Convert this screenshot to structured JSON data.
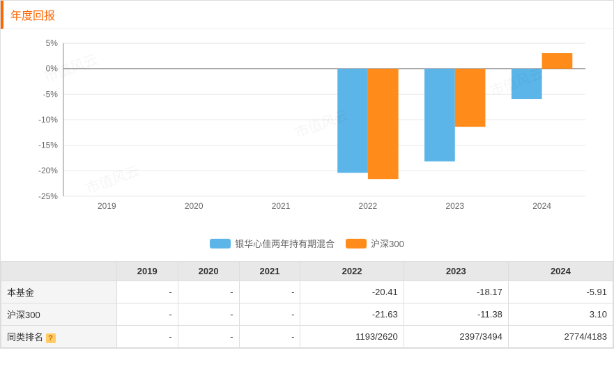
{
  "header": {
    "title": "年度回报"
  },
  "watermark": "市值风云",
  "chart": {
    "type": "bar",
    "categories": [
      "2019",
      "2020",
      "2021",
      "2022",
      "2023",
      "2024"
    ],
    "series": [
      {
        "name": "银华心佳两年持有期混合",
        "color": "#5bb5e8",
        "values": [
          null,
          null,
          null,
          -20.41,
          -18.17,
          -5.91
        ]
      },
      {
        "name": "沪深300",
        "color": "#ff8c1a",
        "values": [
          null,
          null,
          null,
          -21.63,
          -11.38,
          3.1
        ]
      }
    ],
    "y_min": -25,
    "y_max": 5,
    "y_step": 5,
    "y_tick_labels": [
      "5%",
      "0%",
      "-5%",
      "-10%",
      "-15%",
      "-20%",
      "-25%"
    ],
    "grid_color": "#e8e8e8",
    "axis_color": "#888888",
    "background_color": "#ffffff",
    "bar_width": 0.35,
    "label_fontsize": 12
  },
  "legend": {
    "items": [
      {
        "label": "银华心佳两年持有期混合",
        "color": "#5bb5e8"
      },
      {
        "label": "沪深300",
        "color": "#ff8c1a"
      }
    ]
  },
  "table": {
    "columns": [
      "",
      "2019",
      "2020",
      "2021",
      "2022",
      "2023",
      "2024"
    ],
    "rows": [
      {
        "label": "本基金",
        "cells": [
          "-",
          "-",
          "-",
          "-20.41",
          "-18.17",
          "-5.91"
        ]
      },
      {
        "label": "沪深300",
        "cells": [
          "-",
          "-",
          "-",
          "-21.63",
          "-11.38",
          "3.10"
        ]
      },
      {
        "label": "同类排名",
        "help": true,
        "cells": [
          "-",
          "-",
          "-",
          "1193/2620",
          "2397/3494",
          "2774/4183"
        ]
      }
    ]
  }
}
